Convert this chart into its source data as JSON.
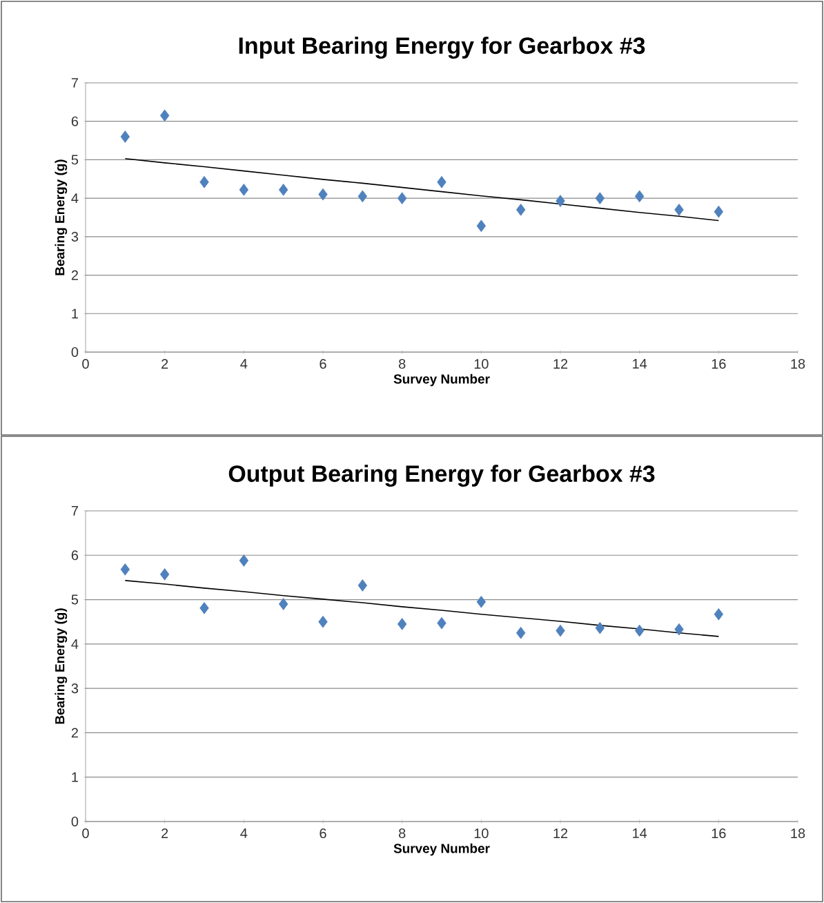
{
  "chart_data": [
    {
      "type": "scatter",
      "title": "Input Bearing Energy for Gearbox #3",
      "xlabel": "Survey Number",
      "ylabel": "Bearing Energy (g)",
      "xlim": [
        0,
        18
      ],
      "xticks": [
        0,
        2,
        4,
        6,
        8,
        10,
        12,
        14,
        16,
        18
      ],
      "ylim": [
        0,
        7
      ],
      "yticks": [
        0,
        1,
        2,
        3,
        4,
        5,
        6,
        7
      ],
      "grid": "y",
      "x": [
        1,
        2,
        3,
        4,
        5,
        6,
        7,
        8,
        9,
        10,
        11,
        12,
        13,
        14,
        15,
        16
      ],
      "series": [
        {
          "color": "#4f81bd",
          "marker": "diamond",
          "values": [
            5.6,
            6.15,
            4.42,
            4.22,
            4.22,
            4.1,
            4.05,
            4.0,
            4.42,
            3.28,
            3.7,
            3.93,
            4.0,
            4.05,
            3.7,
            3.65
          ]
        },
        {
          "type": "line",
          "color": "#000000",
          "values": [
            5.03,
            4.92,
            4.82,
            4.71,
            4.6,
            4.49,
            4.39,
            4.28,
            4.17,
            4.06,
            3.96,
            3.85,
            3.74,
            3.63,
            3.53,
            3.42
          ]
        }
      ]
    },
    {
      "type": "scatter",
      "title": "Output Bearing Energy for Gearbox #3",
      "xlabel": "Survey Number",
      "ylabel": "Bearing Energy (g)",
      "xlim": [
        0,
        18
      ],
      "xticks": [
        0,
        2,
        4,
        6,
        8,
        10,
        12,
        14,
        16,
        18
      ],
      "ylim": [
        0,
        7
      ],
      "yticks": [
        0,
        1,
        2,
        3,
        4,
        5,
        6,
        7
      ],
      "grid": "y",
      "x": [
        1,
        2,
        3,
        4,
        5,
        6,
        7,
        8,
        9,
        10,
        11,
        12,
        13,
        14,
        15,
        16
      ],
      "series": [
        {
          "color": "#4f81bd",
          "marker": "diamond",
          "values": [
            5.68,
            5.57,
            4.81,
            5.88,
            4.9,
            4.5,
            5.32,
            4.45,
            4.47,
            4.95,
            4.25,
            4.3,
            4.36,
            4.3,
            4.33,
            4.67
          ]
        },
        {
          "type": "line",
          "color": "#000000",
          "values": [
            5.43,
            5.35,
            5.26,
            5.18,
            5.09,
            5.01,
            4.93,
            4.84,
            4.76,
            4.67,
            4.59,
            4.51,
            4.42,
            4.34,
            4.25,
            4.17
          ]
        }
      ]
    }
  ]
}
